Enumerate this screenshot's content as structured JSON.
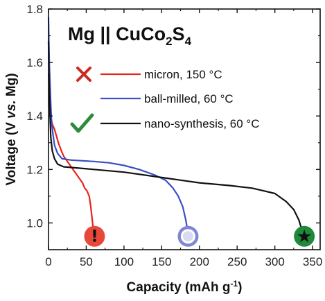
{
  "chart_data": {
    "type": "line",
    "title": {
      "prefix": "Mg || CuCo",
      "sub1": "2",
      "mid": "S",
      "sub2": "4"
    },
    "xlabel": "Capacity (mAh g",
    "xlabel_sup": "-1",
    "xlabel_end": ")",
    "ylabel_pre": "Voltage (V ",
    "ylabel_ital": "vs.",
    "ylabel_post": " Mg)",
    "xlim": [
      0,
      360
    ],
    "ylim": [
      0.9,
      1.8
    ],
    "xticks": [
      0,
      50,
      100,
      150,
      200,
      250,
      300,
      350
    ],
    "yticks": [
      1.0,
      1.2,
      1.4,
      1.6,
      1.8
    ],
    "ytick_labels": [
      "1.0",
      "1.2",
      "1.4",
      "1.6",
      "1.8"
    ],
    "grid": false,
    "legend_placement": "top-right",
    "series": [
      {
        "name": "micron, 150 °C",
        "color": "#e8231c",
        "status_icon": "cross-icon",
        "status_color": "#c92c24",
        "points": [
          [
            0,
            1.56
          ],
          [
            1,
            1.5
          ],
          [
            2,
            1.44
          ],
          [
            3,
            1.4
          ],
          [
            5,
            1.37
          ],
          [
            8,
            1.35
          ],
          [
            10,
            1.33
          ],
          [
            13,
            1.3
          ],
          [
            17,
            1.27
          ],
          [
            20,
            1.25
          ],
          [
            25,
            1.23
          ],
          [
            30,
            1.21
          ],
          [
            35,
            1.19
          ],
          [
            40,
            1.17
          ],
          [
            45,
            1.15
          ],
          [
            48,
            1.13
          ],
          [
            51,
            1.12
          ],
          [
            54,
            1.1
          ],
          [
            56,
            1.06
          ],
          [
            58,
            1.01
          ],
          [
            60,
            0.96
          ],
          [
            61,
            0.92
          ]
        ],
        "end_marker": {
          "x": 61,
          "y": 0.95,
          "symbol": "!",
          "fill": "#e8483a",
          "icon": "exclamation-icon"
        }
      },
      {
        "name": "ball-milled, 60 °C",
        "color": "#3a4fc4",
        "status_icon": "",
        "points": [
          [
            0,
            1.77
          ],
          [
            0.5,
            1.68
          ],
          [
            1,
            1.6
          ],
          [
            2,
            1.52
          ],
          [
            3,
            1.44
          ],
          [
            4,
            1.38
          ],
          [
            6,
            1.33
          ],
          [
            8,
            1.29
          ],
          [
            12,
            1.26
          ],
          [
            18,
            1.24
          ],
          [
            30,
            1.235
          ],
          [
            60,
            1.23
          ],
          [
            80,
            1.225
          ],
          [
            100,
            1.215
          ],
          [
            120,
            1.2
          ],
          [
            140,
            1.18
          ],
          [
            155,
            1.16
          ],
          [
            165,
            1.13
          ],
          [
            172,
            1.1
          ],
          [
            178,
            1.06
          ],
          [
            182,
            1.01
          ],
          [
            185,
            0.96
          ],
          [
            186,
            0.93
          ]
        ],
        "end_marker": {
          "x": 185,
          "y": 0.95,
          "symbol": "",
          "fill": "#8186d4",
          "icon": "circle-marker-icon"
        }
      },
      {
        "name": "nano-synthesis, 60 °C",
        "color": "#111111",
        "status_icon": "check-icon",
        "status_color": "#2c8c3c",
        "points": [
          [
            0,
            1.68
          ],
          [
            0.5,
            1.58
          ],
          [
            1,
            1.5
          ],
          [
            2,
            1.4
          ],
          [
            3,
            1.32
          ],
          [
            5,
            1.27
          ],
          [
            8,
            1.24
          ],
          [
            12,
            1.22
          ],
          [
            20,
            1.21
          ],
          [
            40,
            1.205
          ],
          [
            60,
            1.2
          ],
          [
            100,
            1.19
          ],
          [
            150,
            1.17
          ],
          [
            200,
            1.15
          ],
          [
            240,
            1.14
          ],
          [
            270,
            1.13
          ],
          [
            300,
            1.11
          ],
          [
            315,
            1.08
          ],
          [
            325,
            1.05
          ],
          [
            332,
            1.01
          ],
          [
            336,
            0.97
          ],
          [
            338,
            0.93
          ]
        ],
        "end_marker": {
          "x": 339,
          "y": 0.95,
          "symbol": "★",
          "fill": "#1f8a3a",
          "icon": "star-icon"
        }
      }
    ]
  }
}
